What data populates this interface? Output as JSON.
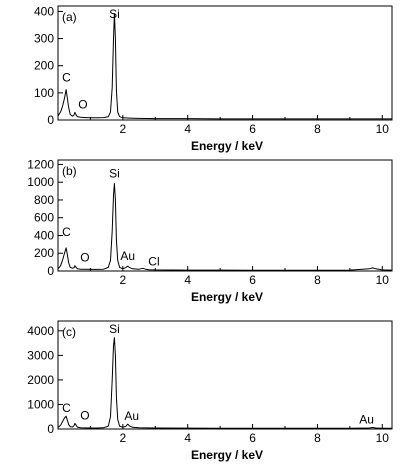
{
  "chart_data": [
    {
      "type": "line",
      "panel_label": "(a)",
      "xlabel": "Energy / keV",
      "ylabel": "",
      "xlim": [
        0,
        10.3
      ],
      "ylim": [
        0,
        420
      ],
      "xticks": [
        2,
        4,
        6,
        8,
        10
      ],
      "yticks": [
        0,
        100,
        200,
        300,
        400
      ],
      "grid": false,
      "x": [
        0,
        0.08,
        0.14,
        0.2,
        0.25,
        0.29,
        0.33,
        0.38,
        0.45,
        0.5,
        0.52,
        0.56,
        0.6,
        0.7,
        0.85,
        1.0,
        1.2,
        1.4,
        1.55,
        1.62,
        1.67,
        1.71,
        1.74,
        1.77,
        1.8,
        1.84,
        1.9,
        2.0,
        2.2,
        2.5,
        3,
        4,
        5,
        6,
        7,
        8,
        9,
        10,
        10.3
      ],
      "y": [
        15,
        30,
        50,
        80,
        112,
        80,
        45,
        20,
        14,
        20,
        28,
        18,
        12,
        10,
        9,
        8,
        8,
        9,
        12,
        30,
        120,
        300,
        392,
        300,
        110,
        30,
        12,
        8,
        7,
        6,
        5,
        5,
        4,
        4,
        4,
        4,
        4,
        4,
        4
      ],
      "peak_labels": [
        {
          "text": "Si",
          "x": 1.74,
          "y": 392
        },
        {
          "text": "C",
          "x": 0.26,
          "y": 112
        },
        {
          "text": "O",
          "x": 0.52,
          "y": 28
        }
      ]
    },
    {
      "type": "line",
      "panel_label": "(b)",
      "xlabel": "Energy / keV",
      "ylabel": "",
      "xlim": [
        0,
        10.3
      ],
      "ylim": [
        0,
        1250
      ],
      "xticks": [
        2,
        4,
        6,
        8,
        10
      ],
      "yticks": [
        0,
        200,
        400,
        600,
        800,
        1000,
        1200
      ],
      "grid": false,
      "x": [
        0,
        0.08,
        0.14,
        0.2,
        0.25,
        0.29,
        0.33,
        0.38,
        0.45,
        0.5,
        0.52,
        0.56,
        0.6,
        0.7,
        0.85,
        1.0,
        1.2,
        1.4,
        1.55,
        1.62,
        1.67,
        1.71,
        1.74,
        1.77,
        1.8,
        1.84,
        1.9,
        2.0,
        2.1,
        2.15,
        2.2,
        2.3,
        2.5,
        2.62,
        2.7,
        2.8,
        3,
        4,
        5,
        6,
        7,
        8,
        9,
        9.6,
        9.7,
        9.8,
        10,
        10.3
      ],
      "y": [
        25,
        60,
        120,
        200,
        260,
        180,
        90,
        40,
        30,
        40,
        60,
        40,
        25,
        20,
        20,
        18,
        18,
        20,
        40,
        120,
        450,
        850,
        985,
        800,
        350,
        120,
        40,
        25,
        40,
        55,
        40,
        25,
        20,
        30,
        20,
        15,
        12,
        10,
        10,
        9,
        9,
        9,
        10,
        25,
        35,
        25,
        12,
        10
      ],
      "peak_labels": [
        {
          "text": "Si",
          "x": 1.74,
          "y": 985
        },
        {
          "text": "C",
          "x": 0.26,
          "y": 260
        },
        {
          "text": "O",
          "x": 0.52,
          "y": 60
        },
        {
          "text": "Au",
          "x": 2.15,
          "y": 55
        },
        {
          "text": "Cl",
          "x": 2.62,
          "y": 30
        }
      ]
    },
    {
      "type": "line",
      "panel_label": "(c)",
      "xlabel": "Energy / keV",
      "ylabel": "",
      "xlim": [
        0,
        10.3
      ],
      "ylim": [
        0,
        4400
      ],
      "xticks": [
        2,
        4,
        6,
        8,
        10
      ],
      "yticks": [
        0,
        1000,
        2000,
        3000,
        4000
      ],
      "grid": false,
      "x": [
        0,
        0.08,
        0.14,
        0.2,
        0.25,
        0.29,
        0.33,
        0.38,
        0.45,
        0.5,
        0.52,
        0.56,
        0.6,
        0.7,
        0.85,
        1.0,
        1.2,
        1.4,
        1.55,
        1.62,
        1.67,
        1.71,
        1.74,
        1.77,
        1.8,
        1.84,
        1.9,
        2.0,
        2.1,
        2.15,
        2.2,
        2.3,
        2.5,
        3,
        4,
        5,
        6,
        7,
        8,
        9,
        9.6,
        9.7,
        9.8,
        10,
        10.3
      ],
      "y": [
        60,
        150,
        300,
        450,
        520,
        350,
        180,
        90,
        80,
        150,
        230,
        150,
        70,
        50,
        45,
        40,
        40,
        50,
        120,
        500,
        2000,
        3400,
        3720,
        3000,
        1300,
        400,
        120,
        70,
        120,
        200,
        130,
        70,
        50,
        40,
        35,
        30,
        30,
        30,
        30,
        30,
        40,
        60,
        40,
        30,
        30
      ],
      "peak_labels": [
        {
          "text": "Si",
          "x": 1.74,
          "y": 3720
        },
        {
          "text": "C",
          "x": 0.26,
          "y": 520
        },
        {
          "text": "O",
          "x": 0.52,
          "y": 230
        },
        {
          "text": "Au",
          "x": 2.15,
          "y": 200
        },
        {
          "text": "Au",
          "x": 9.7,
          "y": 60
        }
      ]
    }
  ]
}
